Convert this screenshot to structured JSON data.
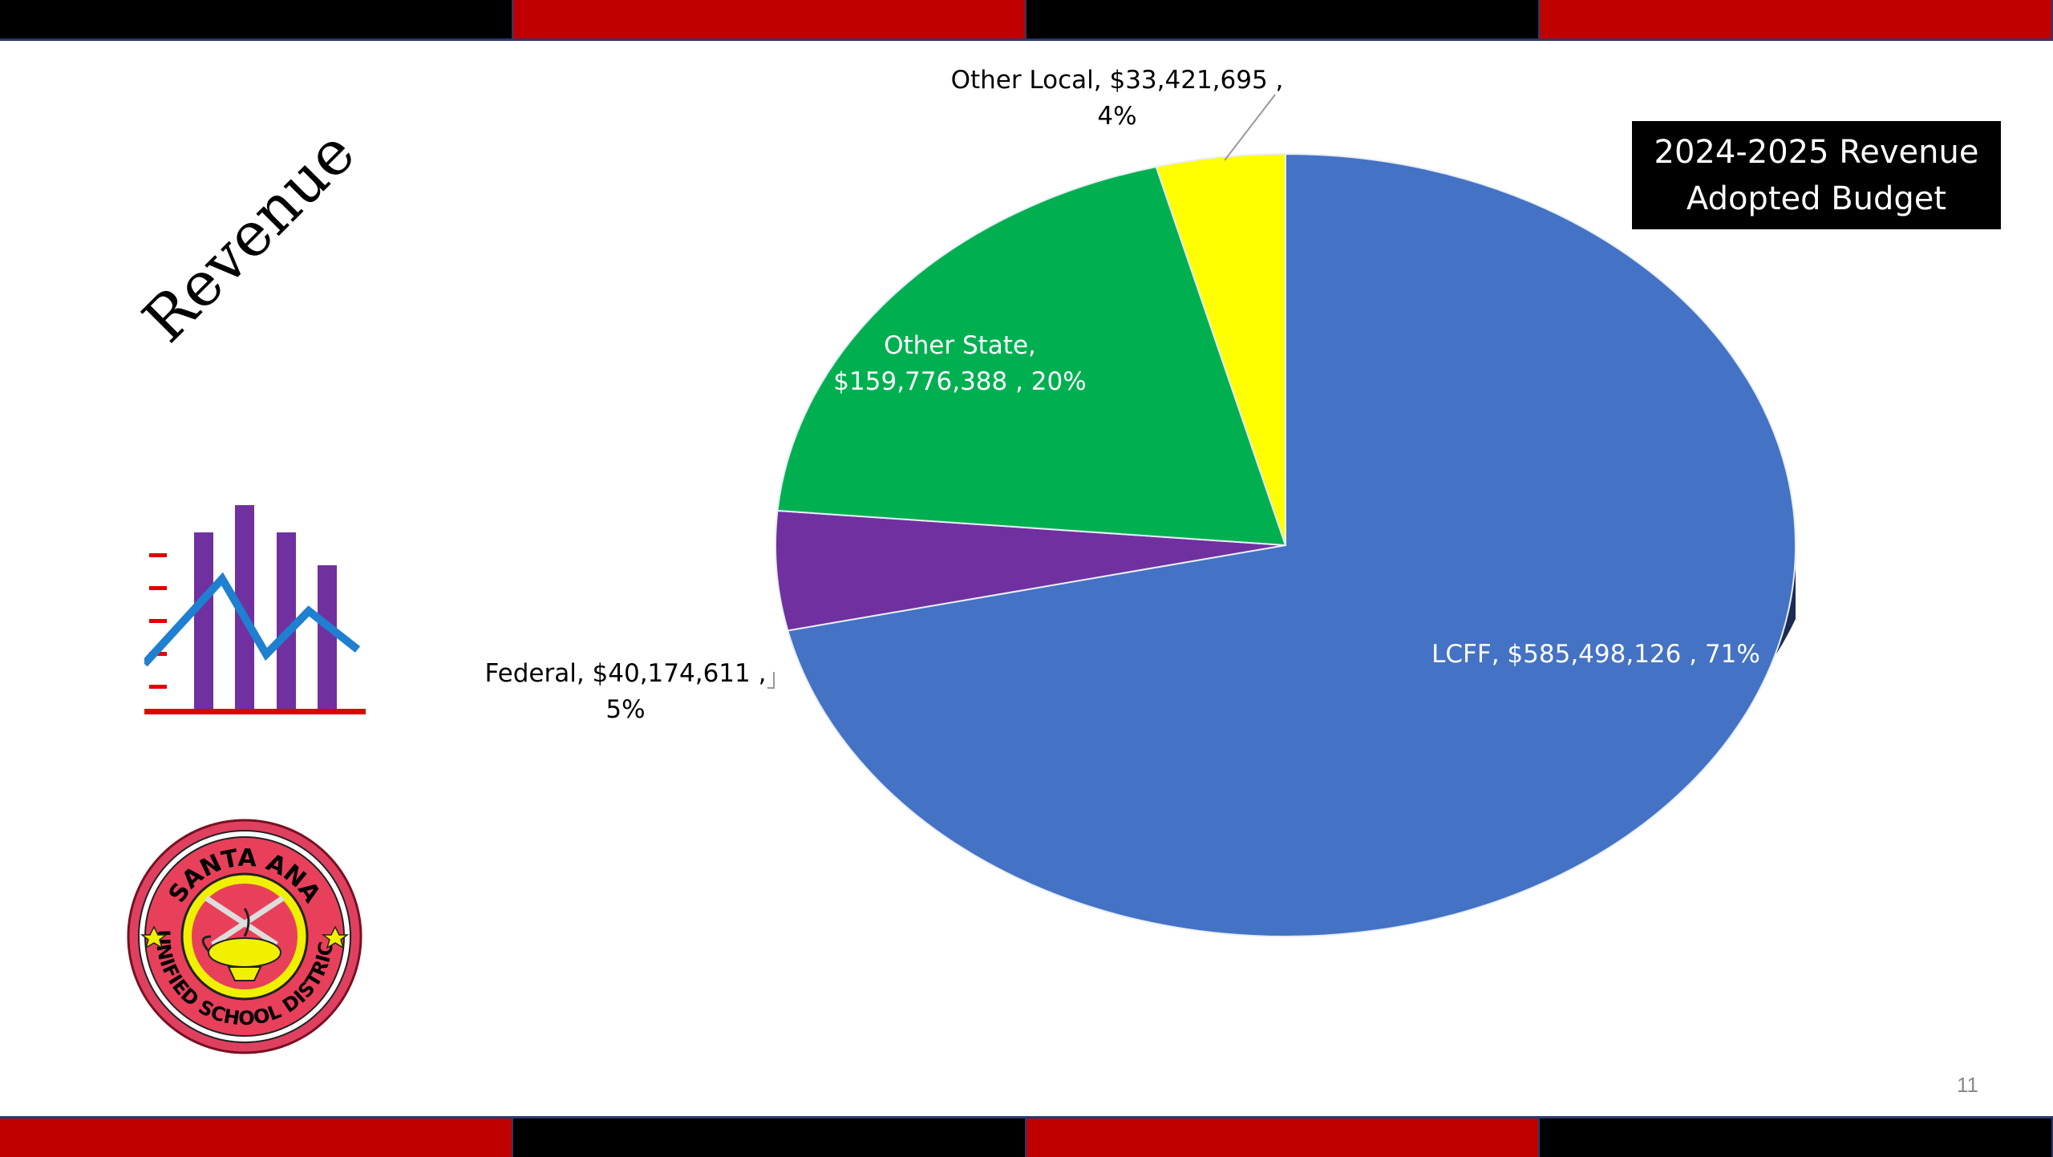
{
  "slide": {
    "title": "Revenue",
    "page_number": "11",
    "seal_text_top": "SANTA ANA",
    "seal_text_bottom": "UNIFIED SCHOOL DISTRICT"
  },
  "legend_box": {
    "line1": "2024-2025 Revenue",
    "line2": "Adopted Budget"
  },
  "colors": {
    "strip_red": "#c00000",
    "strip_black": "#000000",
    "lcff": "#4472c4",
    "other_state": "#00b050",
    "other_local": "#ffff00",
    "federal": "#7030a0"
  },
  "icons": [
    "bar-line-chart-icon",
    "school-district-seal"
  ],
  "chart_data": {
    "type": "pie",
    "style": "3d",
    "title": "",
    "slices": [
      {
        "category": "LCFF",
        "value": 585498126,
        "percent": 71,
        "label_line1": "LCFF, $585,498,126 , 71%",
        "label_line2": ""
      },
      {
        "category": "Federal",
        "value": 40174611,
        "percent": 5,
        "label_line1": "Federal, $40,174,611 ,",
        "label_line2": "5%"
      },
      {
        "category": "Other State",
        "value": 159776388,
        "percent": 20,
        "label_line1": "Other State,",
        "label_line2": "$159,776,388 , 20%"
      },
      {
        "category": "Other Local",
        "value": 33421695,
        "percent": 4,
        "label_line1": "Other Local, $33,421,695 ,",
        "label_line2": "4%"
      }
    ]
  }
}
